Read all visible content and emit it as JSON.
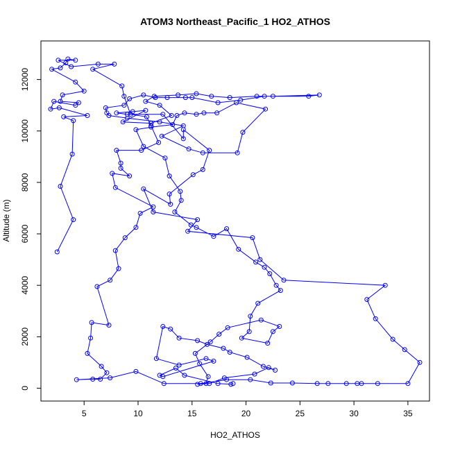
{
  "chart_data": {
    "type": "line",
    "title": "ATOM3 Northeast_Pacific_1 HO2_ATHOS",
    "xlabel": "HO2_ATHOS",
    "ylabel": "Altitude (m)",
    "xlim": [
      1,
      37
    ],
    "ylim": [
      -500,
      13500
    ],
    "xticks": [
      5,
      10,
      15,
      20,
      25,
      30,
      35
    ],
    "yticks": [
      0,
      2000,
      4000,
      6000,
      8000,
      10000,
      12000
    ],
    "grid": false,
    "legend": "none",
    "marker": "open-circle",
    "color": "#0000ff",
    "series": [
      {
        "values": [
          [
            2.5,
            5300
          ],
          [
            4.0,
            6550
          ],
          [
            2.8,
            7850
          ],
          [
            3.9,
            9100
          ],
          [
            4.0,
            10400
          ],
          [
            3.1,
            10550
          ],
          [
            5.3,
            10600
          ],
          [
            2.7,
            10900
          ],
          [
            1.9,
            10850
          ],
          [
            2.2,
            11150
          ],
          [
            4.2,
            11000
          ],
          [
            4.5,
            11100
          ],
          [
            2.8,
            11150
          ],
          [
            3.0,
            11400
          ],
          [
            5.0,
            11550
          ],
          [
            4.2,
            11900
          ],
          [
            2.0,
            12400
          ],
          [
            2.8,
            12450
          ],
          [
            3.3,
            12650
          ],
          [
            3.5,
            12800
          ],
          [
            4.2,
            12750
          ],
          [
            2.6,
            12750
          ],
          [
            3.8,
            12500
          ],
          [
            6.3,
            12600
          ],
          [
            7.8,
            12600
          ],
          [
            5.8,
            12400
          ],
          [
            8.5,
            11750
          ],
          [
            8.7,
            11350
          ],
          [
            9.3,
            10650
          ],
          [
            10.8,
            10550
          ],
          [
            11.2,
            10200
          ],
          [
            11.9,
            9550
          ],
          [
            10.3,
            9250
          ],
          [
            8.0,
            9250
          ],
          [
            8.4,
            8750
          ],
          [
            8.4,
            8550
          ],
          [
            9.2,
            8250
          ],
          [
            7.6,
            8350
          ],
          [
            7.9,
            7800
          ],
          [
            11.4,
            7050
          ],
          [
            10.2,
            6800
          ],
          [
            9.8,
            6250
          ],
          [
            8.8,
            5850
          ],
          [
            7.9,
            5350
          ],
          [
            8.2,
            4650
          ],
          [
            7.4,
            4200
          ],
          [
            6.2,
            3950
          ],
          [
            7.3,
            2450
          ],
          [
            5.7,
            2550
          ],
          [
            5.6,
            1950
          ],
          [
            5.3,
            1350
          ],
          [
            6.6,
            850
          ],
          [
            7.1,
            600
          ],
          [
            6.5,
            350
          ],
          [
            5.8,
            350
          ],
          [
            4.3,
            330
          ],
          [
            7.4,
            400
          ],
          [
            9.8,
            650
          ],
          [
            12.4,
            180
          ],
          [
            15.8,
            180
          ],
          [
            18.2,
            330
          ],
          [
            20.4,
            330
          ],
          [
            22.3,
            200
          ],
          [
            24.3,
            200
          ],
          [
            26.6,
            180
          ],
          [
            27.6,
            180
          ],
          [
            29.3,
            180
          ],
          [
            30.3,
            180
          ],
          [
            30.7,
            180
          ],
          [
            32.2,
            180
          ],
          [
            35.0,
            180
          ],
          [
            36.1,
            1000
          ],
          [
            34.7,
            1500
          ],
          [
            33.6,
            1900
          ],
          [
            32.0,
            2700
          ],
          [
            31.2,
            3450
          ],
          [
            32.9,
            4000
          ],
          [
            23.5,
            4200
          ],
          [
            21.3,
            5000
          ],
          [
            20.6,
            5850
          ],
          [
            14.6,
            6100
          ],
          [
            15.5,
            6550
          ],
          [
            11.4,
            6850
          ],
          [
            10.5,
            7750
          ],
          [
            13.0,
            7150
          ],
          [
            12.9,
            7550
          ],
          [
            15.1,
            8300
          ],
          [
            16.0,
            8500
          ],
          [
            16.6,
            9250
          ],
          [
            14.2,
            10050
          ],
          [
            14.2,
            9700
          ],
          [
            12.3,
            10650
          ],
          [
            9.0,
            10650
          ],
          [
            8.0,
            10700
          ],
          [
            9.5,
            10750
          ],
          [
            10.7,
            10800
          ],
          [
            8.6,
            10350
          ],
          [
            11.2,
            10300
          ],
          [
            13.1,
            10600
          ],
          [
            12.0,
            11000
          ],
          [
            10.7,
            11150
          ],
          [
            11.5,
            11350
          ],
          [
            13.7,
            11400
          ],
          [
            15.4,
            11450
          ],
          [
            16.8,
            11350
          ],
          [
            18.5,
            11300
          ],
          [
            21.0,
            11350
          ],
          [
            22.5,
            11350
          ],
          [
            26.8,
            11400
          ],
          [
            25.8,
            11350
          ],
          [
            21.7,
            11350
          ],
          [
            19.5,
            11200
          ],
          [
            17.4,
            11100
          ],
          [
            15.0,
            11300
          ],
          [
            14.4,
            11300
          ],
          [
            12.7,
            11300
          ],
          [
            11.6,
            11300
          ],
          [
            10.5,
            11400
          ],
          [
            9.2,
            11250
          ],
          [
            8.7,
            11000
          ],
          [
            7.0,
            10900
          ],
          [
            7.1,
            10700
          ],
          [
            7.3,
            10600
          ],
          [
            9.0,
            10500
          ],
          [
            12.0,
            10350
          ],
          [
            14.2,
            10200
          ],
          [
            12.2,
            9800
          ],
          [
            14.7,
            9300
          ],
          [
            16.0,
            9150
          ],
          [
            19.2,
            9150
          ],
          [
            19.7,
            9950
          ],
          [
            21.8,
            10850
          ],
          [
            19.1,
            11100
          ],
          [
            17.3,
            10700
          ],
          [
            16.1,
            10700
          ],
          [
            15.4,
            10650
          ],
          [
            14.3,
            10700
          ],
          [
            13.6,
            10600
          ],
          [
            13.2,
            10250
          ],
          [
            11.2,
            10150
          ],
          [
            9.8,
            10050
          ],
          [
            10.5,
            9400
          ],
          [
            12.5,
            8950
          ],
          [
            12.9,
            8250
          ],
          [
            13.9,
            7650
          ],
          [
            14.0,
            7300
          ],
          [
            13.4,
            6850
          ],
          [
            14.9,
            6350
          ],
          [
            15.4,
            6250
          ],
          [
            17.0,
            5900
          ],
          [
            18.2,
            6200
          ],
          [
            19.3,
            5400
          ],
          [
            20.9,
            4900
          ],
          [
            21.7,
            4700
          ],
          [
            22.2,
            4450
          ],
          [
            22.8,
            4000
          ],
          [
            23.2,
            3800
          ],
          [
            21.1,
            3300
          ],
          [
            20.4,
            2800
          ],
          [
            20.3,
            2200
          ],
          [
            19.6,
            1950
          ],
          [
            22.0,
            1750
          ],
          [
            22.5,
            2200
          ],
          [
            23.1,
            2400
          ],
          [
            21.4,
            2650
          ],
          [
            18.3,
            2350
          ],
          [
            17.5,
            2100
          ],
          [
            16.7,
            1800
          ],
          [
            15.3,
            1350
          ],
          [
            15.7,
            950
          ],
          [
            16.5,
            450
          ],
          [
            16.3,
            180
          ],
          [
            15.5,
            150
          ],
          [
            16.6,
            180
          ],
          [
            18.0,
            400
          ],
          [
            20.8,
            550
          ],
          [
            22.1,
            800
          ],
          [
            22.7,
            700
          ],
          [
            21.6,
            850
          ],
          [
            20.1,
            1200
          ],
          [
            18.5,
            1400
          ],
          [
            17.9,
            1550
          ],
          [
            16.4,
            1700
          ],
          [
            15.5,
            1850
          ],
          [
            13.8,
            1950
          ],
          [
            13.0,
            2300
          ],
          [
            12.3,
            2400
          ],
          [
            11.7,
            1150
          ],
          [
            13.8,
            900
          ],
          [
            16.3,
            1150
          ],
          [
            17.0,
            1050
          ],
          [
            12.3,
            450
          ],
          [
            12.0,
            500
          ],
          [
            13.5,
            780
          ],
          [
            14.3,
            500
          ],
          [
            17.4,
            180
          ],
          [
            18.6,
            150
          ],
          [
            18.8,
            180
          ]
        ]
      }
    ]
  }
}
